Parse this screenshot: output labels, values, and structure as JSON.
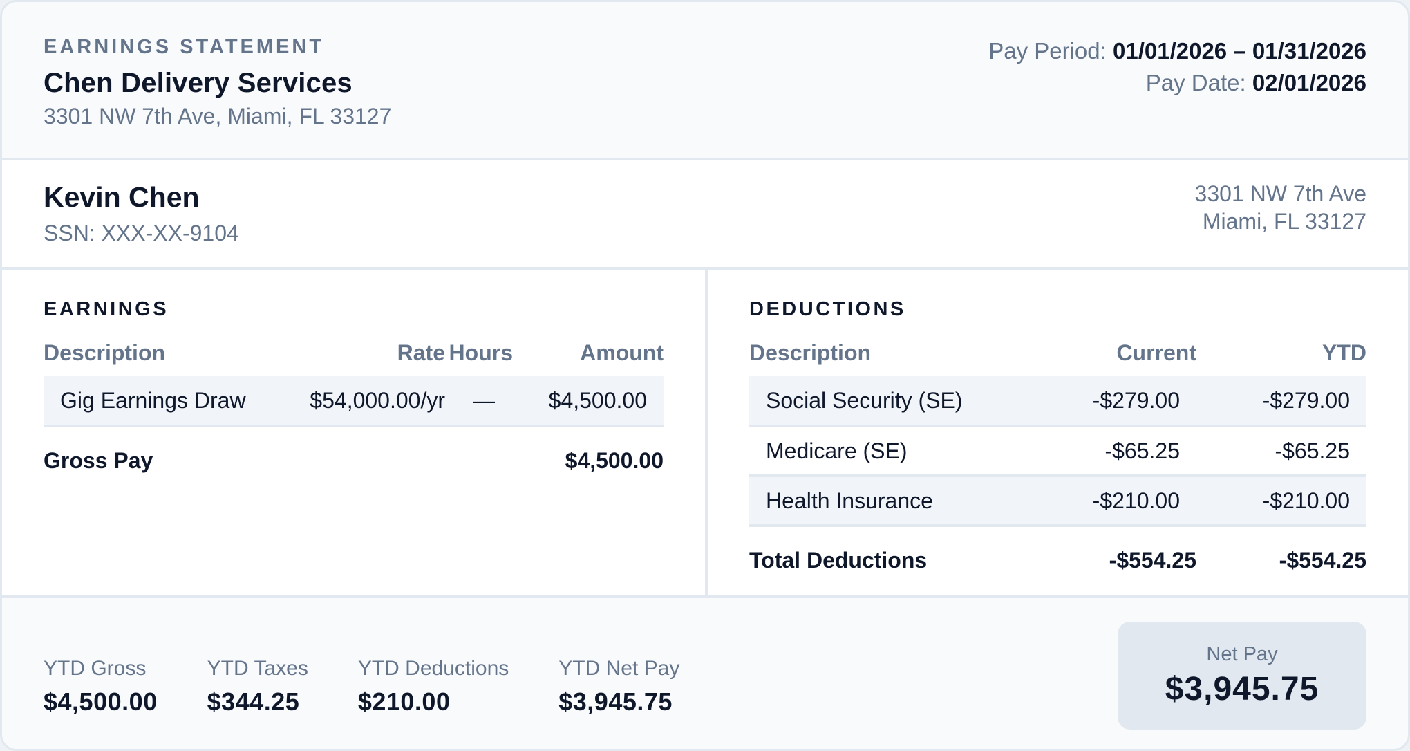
{
  "header": {
    "eyebrow": "EARNINGS STATEMENT",
    "company_name": "Chen Delivery Services",
    "company_address": "3301 NW 7th Ave, Miami, FL 33127",
    "pay_period_label": "Pay Period:",
    "pay_period_value": "01/01/2026 – 01/31/2026",
    "pay_date_label": "Pay Date:",
    "pay_date_value": "02/01/2026"
  },
  "employee": {
    "name": "Kevin Chen",
    "ssn": "SSN: XXX-XX-9104",
    "address_line1": "3301 NW 7th Ave",
    "address_line2": "Miami, FL 33127"
  },
  "earnings": {
    "title": "EARNINGS",
    "columns": [
      "Description",
      "Rate",
      "Hours",
      "Amount"
    ],
    "rows": [
      {
        "description": "Gig Earnings Draw",
        "rate": "$54,000.00/yr",
        "hours": "—",
        "amount": "$4,500.00"
      }
    ],
    "total_label": "Gross Pay",
    "total_amount": "$4,500.00"
  },
  "deductions": {
    "title": "DEDUCTIONS",
    "columns": [
      "Description",
      "Current",
      "YTD"
    ],
    "rows": [
      {
        "description": "Social Security (SE)",
        "current": "-$279.00",
        "ytd": "-$279.00"
      },
      {
        "description": "Medicare (SE)",
        "current": "-$65.25",
        "ytd": "-$65.25"
      },
      {
        "description": "Health Insurance",
        "current": "-$210.00",
        "ytd": "-$210.00"
      }
    ],
    "total_label": "Total Deductions",
    "total_current": "-$554.25",
    "total_ytd": "-$554.25"
  },
  "summary": {
    "items": [
      {
        "label": "YTD Gross",
        "value": "$4,500.00"
      },
      {
        "label": "YTD Taxes",
        "value": "$344.25"
      },
      {
        "label": "YTD Deductions",
        "value": "$210.00"
      },
      {
        "label": "YTD Net Pay",
        "value": "$3,945.75"
      }
    ],
    "net_pay_label": "Net Pay",
    "net_pay_value": "$3,945.75"
  },
  "colors": {
    "text_primary": "#0f172a",
    "text_muted": "#64748b",
    "border": "#e2e8f0",
    "header_bg": "#f8fafc",
    "row_highlight": "#f1f5f9",
    "net_pay_bg": "#e2e8f0"
  }
}
